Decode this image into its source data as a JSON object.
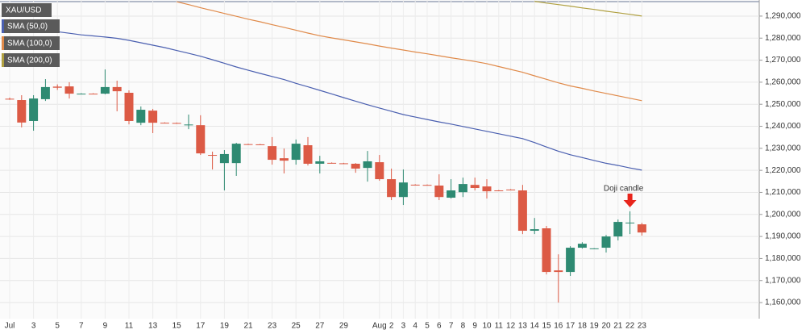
{
  "chart_data": {
    "type": "candlestick",
    "title": "XAU/USD",
    "annotation": "Doji candle",
    "up_color": "#2e8a72",
    "down_color": "#dc5a45",
    "categories": [
      "Jul",
      null,
      "3",
      null,
      "5",
      null,
      "7",
      null,
      "9",
      null,
      "11",
      null,
      "13",
      null,
      "15",
      null,
      "17",
      null,
      "19",
      null,
      "21",
      null,
      "23",
      null,
      "25",
      null,
      "27",
      null,
      "29",
      null,
      null,
      "Aug",
      "2",
      "3",
      "4",
      "5",
      "6",
      "7",
      "8",
      "9",
      "10",
      "11",
      "12",
      "13",
      "14",
      "15",
      "16",
      "17",
      "18",
      "19",
      "20",
      "21",
      "22",
      "23"
    ],
    "open": [
      1252500,
      1251900,
      1242400,
      1252300,
      1258000,
      1258100,
      1254800,
      1254800,
      1254800,
      1257800,
      1255200,
      1241600,
      1247100,
      1241600,
      1241500,
      1240500,
      1240500,
      1227000,
      1223300,
      1223300,
      1231900,
      1231800,
      1231000,
      1225500,
      1224800,
      1231400,
      1223000,
      1223400,
      1223200,
      1223000,
      1221100,
      1223700,
      1216000,
      1207900,
      1213500,
      1213400,
      1213100,
      1207600,
      1210100,
      1213400,
      1212700,
      1210900,
      1211300,
      1210900,
      1192600,
      1193700,
      1174600,
      1173900,
      1184900,
      1184500,
      1184900,
      1190000,
      1196200,
      1195500
    ],
    "high": [
      1253000,
      1254100,
      1254100,
      1261400,
      1259000,
      1260000,
      1255000,
      1255000,
      1265800,
      1260700,
      1256300,
      1249000,
      1247900,
      1241800,
      1241700,
      1245300,
      1245000,
      1228500,
      1229200,
      1232500,
      1232100,
      1232000,
      1235100,
      1229900,
      1234000,
      1235100,
      1226600,
      1223600,
      1223400,
      1223300,
      1228800,
      1227000,
      1220800,
      1220400,
      1213700,
      1213600,
      1218200,
      1216000,
      1216700,
      1216700,
      1216000,
      1211100,
      1211500,
      1213400,
      1198400,
      1194800,
      1181900,
      1185600,
      1187400,
      1184700,
      1190700,
      1197700,
      1201400,
      1196200
    ],
    "low": [
      1252000,
      1239500,
      1238000,
      1251500,
      1256500,
      1252600,
      1254600,
      1254600,
      1254500,
      1246800,
      1240900,
      1240500,
      1236900,
      1241300,
      1241200,
      1238700,
      1227000,
      1220400,
      1210900,
      1217500,
      1231700,
      1231600,
      1222600,
      1218600,
      1222600,
      1222200,
      1218600,
      1223100,
      1222900,
      1218900,
      1214900,
      1215300,
      1206500,
      1204300,
      1213200,
      1213100,
      1206500,
      1207200,
      1207900,
      1210900,
      1207200,
      1210700,
      1211100,
      1191100,
      1191100,
      1172800,
      1160000,
      1172100,
      1184500,
      1184300,
      1182700,
      1188200,
      1191100,
      1190400
    ],
    "close": [
      1252300,
      1241700,
      1252600,
      1257800,
      1257500,
      1254800,
      1254800,
      1254700,
      1257800,
      1255900,
      1242400,
      1247500,
      1241600,
      1241500,
      1241300,
      1240800,
      1227700,
      1226800,
      1227400,
      1232100,
      1231800,
      1231700,
      1224800,
      1224400,
      1232100,
      1223000,
      1224100,
      1223300,
      1223000,
      1220800,
      1224100,
      1216000,
      1207900,
      1214500,
      1213400,
      1213300,
      1207900,
      1210900,
      1213800,
      1212000,
      1210500,
      1210800,
      1211200,
      1192600,
      1193300,
      1173900,
      1173900,
      1184900,
      1186700,
      1184600,
      1190000,
      1196600,
      1196300,
      1191800
    ],
    "series": [
      {
        "name": "SMA (50,0)",
        "color": "#4a5fb0",
        "values": [
          1285800,
          1285100,
          1284400,
          1283700,
          1282900,
          1282200,
          1281500,
          1281000,
          1280500,
          1279900,
          1279000,
          1277900,
          1276800,
          1275700,
          1274400,
          1273100,
          1271800,
          1270200,
          1268600,
          1266900,
          1265400,
          1264000,
          1262600,
          1261200,
          1259500,
          1257900,
          1256300,
          1254700,
          1253000,
          1251400,
          1249800,
          1248300,
          1246800,
          1245300,
          1244200,
          1243100,
          1242000,
          1241000,
          1239900,
          1238800,
          1237700,
          1236600,
          1235500,
          1234400,
          1232600,
          1230600,
          1228700,
          1227100,
          1225800,
          1224500,
          1223200,
          1222200,
          1221100,
          1220100
        ]
      },
      {
        "name": "SMA (100,0)",
        "color": "#e08a4a",
        "values": [
          null,
          null,
          null,
          null,
          null,
          null,
          null,
          null,
          null,
          null,
          null,
          null,
          null,
          null,
          1296500,
          1295200,
          1293800,
          1292500,
          1291200,
          1289900,
          1288600,
          1287400,
          1286100,
          1284900,
          1283600,
          1282300,
          1281100,
          1280100,
          1279200,
          1278300,
          1277400,
          1276400,
          1275500,
          1274600,
          1273700,
          1272900,
          1272000,
          1271100,
          1270300,
          1269400,
          1268400,
          1267100,
          1265800,
          1264500,
          1262900,
          1261300,
          1259700,
          1258300,
          1257200,
          1256000,
          1254900,
          1253800,
          1252700,
          1251600
        ]
      },
      {
        "name": "SMA (200,0)",
        "color": "#b0a040",
        "values": [
          null,
          null,
          null,
          null,
          null,
          null,
          null,
          null,
          null,
          null,
          null,
          null,
          null,
          null,
          null,
          null,
          null,
          null,
          null,
          null,
          null,
          null,
          null,
          null,
          null,
          null,
          null,
          null,
          null,
          null,
          null,
          null,
          null,
          null,
          null,
          null,
          null,
          null,
          null,
          null,
          null,
          null,
          null,
          null,
          1296700,
          1295900,
          1295200,
          1294500,
          1293700,
          1293000,
          1292200,
          1291500,
          1290800,
          1290000
        ]
      }
    ],
    "ylim": [
      1152700,
      1297300
    ],
    "yticks": [
      {
        "value": 1160000,
        "label": "1,160,000"
      },
      {
        "value": 1170000,
        "label": "1,170,000"
      },
      {
        "value": 1180000,
        "label": "1,180,000"
      },
      {
        "value": 1190000,
        "label": "1,190,000"
      },
      {
        "value": 1200000,
        "label": "1,200,000"
      },
      {
        "value": 1210000,
        "label": "1,210,000"
      },
      {
        "value": 1220000,
        "label": "1,220,000"
      },
      {
        "value": 1230000,
        "label": "1,230,000"
      },
      {
        "value": 1240000,
        "label": "1,240,000"
      },
      {
        "value": 1250000,
        "label": "1,250,000"
      },
      {
        "value": 1260000,
        "label": "1,260,000"
      },
      {
        "value": 1270000,
        "label": "1,270,000"
      },
      {
        "value": 1280000,
        "label": "1,280,000"
      },
      {
        "value": 1290000,
        "label": "1,290,000"
      }
    ],
    "grid": true,
    "annotated_index": 52
  }
}
